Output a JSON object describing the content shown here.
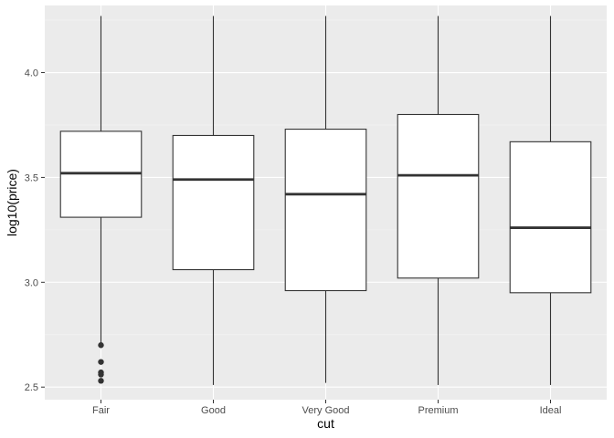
{
  "chart_data": {
    "type": "boxplot",
    "xlabel": "cut",
    "ylabel": "log10(price)",
    "categories": [
      "Fair",
      "Good",
      "Very Good",
      "Premium",
      "Ideal"
    ],
    "ylim": [
      2.44,
      4.32
    ],
    "yticks": [
      2.5,
      3.0,
      3.5,
      4.0
    ],
    "ytick_labels": [
      "2.5",
      "3.0",
      "3.5",
      "4.0"
    ],
    "grid": true,
    "boxes": [
      {
        "category": "Fair",
        "whisker_low": 2.71,
        "q1": 3.31,
        "median": 3.52,
        "q3": 3.72,
        "whisker_high": 4.27,
        "outliers": [
          2.7,
          2.62,
          2.57,
          2.56,
          2.53
        ]
      },
      {
        "category": "Good",
        "whisker_low": 2.51,
        "q1": 3.06,
        "median": 3.49,
        "q3": 3.7,
        "whisker_high": 4.27,
        "outliers": []
      },
      {
        "category": "Very Good",
        "whisker_low": 2.52,
        "q1": 2.96,
        "median": 3.42,
        "q3": 3.73,
        "whisker_high": 4.27,
        "outliers": []
      },
      {
        "category": "Premium",
        "whisker_low": 2.51,
        "q1": 3.02,
        "median": 3.51,
        "q3": 3.8,
        "whisker_high": 4.27,
        "outliers": []
      },
      {
        "category": "Ideal",
        "whisker_low": 2.51,
        "q1": 2.95,
        "median": 3.26,
        "q3": 3.67,
        "whisker_high": 4.27,
        "outliers": []
      }
    ],
    "colors": {
      "panel_background": "#ebebeb",
      "grid_major": "#ffffff",
      "grid_minor": "#f5f5f5",
      "box_fill": "#ffffff",
      "line": "#333333",
      "tick_text": "#4d4d4d"
    }
  }
}
